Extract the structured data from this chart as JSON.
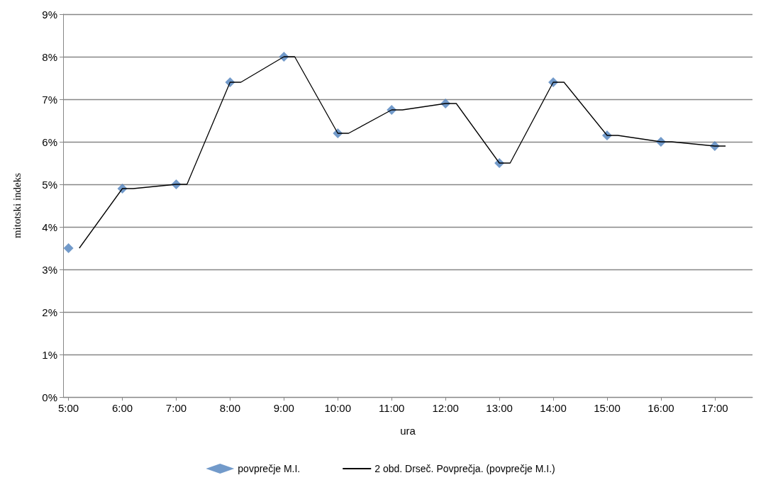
{
  "chart_data": {
    "type": "scatter",
    "xlabel": "ura",
    "ylabel": "mitotski indeks",
    "x": [
      5,
      6,
      7,
      8,
      9,
      10,
      11,
      12,
      13,
      14,
      15,
      16,
      17
    ],
    "series": [
      {
        "name": "povprečje M.I.",
        "color": "#4f81bd",
        "marker": "diamond",
        "values": [
          3.5,
          4.9,
          5.0,
          7.4,
          8.0,
          6.2,
          6.75,
          6.9,
          5.5,
          7.4,
          6.15,
          6.0,
          5.9
        ]
      },
      {
        "name": "2 obd. Drseč. Povprečja. (povprečje M.I.)",
        "type": "line",
        "color": "#000000",
        "marker": "none",
        "line_style": "solid",
        "x": [
          5.2,
          6,
          6.2,
          7,
          7.2,
          8,
          8.2,
          9,
          9.2,
          10,
          10.2,
          11,
          11.2,
          12,
          12.2,
          13,
          13.2,
          14,
          14.2,
          15,
          15.2,
          16,
          16.2,
          17,
          17.2
        ],
        "values": [
          3.5,
          4.9,
          4.9,
          5.0,
          5.0,
          7.4,
          7.4,
          8.0,
          8.0,
          6.2,
          6.2,
          6.75,
          6.75,
          6.9,
          6.9,
          5.5,
          5.5,
          7.4,
          7.4,
          6.15,
          6.15,
          6.0,
          6.0,
          5.9,
          5.9
        ]
      }
    ],
    "xlim": [
      4.9,
      17.7
    ],
    "xticks": [
      {
        "value": 5,
        "label": "5:00"
      },
      {
        "value": 6,
        "label": "6:00"
      },
      {
        "value": 7,
        "label": "7:00"
      },
      {
        "value": 8,
        "label": "8:00"
      },
      {
        "value": 9,
        "label": "9:00"
      },
      {
        "value": 10,
        "label": "10:00"
      },
      {
        "value": 11,
        "label": "11:00"
      },
      {
        "value": 12,
        "label": "12:00"
      },
      {
        "value": 13,
        "label": "13:00"
      },
      {
        "value": 14,
        "label": "14:00"
      },
      {
        "value": 15,
        "label": "15:00"
      },
      {
        "value": 16,
        "label": "16:00"
      },
      {
        "value": 17,
        "label": "17:00"
      }
    ],
    "ylim": [
      0,
      9
    ],
    "yticks": [
      {
        "value": 0,
        "label": "0%"
      },
      {
        "value": 1,
        "label": "1%"
      },
      {
        "value": 2,
        "label": "2%"
      },
      {
        "value": 3,
        "label": "3%"
      },
      {
        "value": 4,
        "label": "4%"
      },
      {
        "value": 5,
        "label": "5%"
      },
      {
        "value": 6,
        "label": "6%"
      },
      {
        "value": 7,
        "label": "7%"
      },
      {
        "value": 8,
        "label": "8%"
      },
      {
        "value": 9,
        "label": "9%"
      }
    ],
    "grid": "y",
    "legend": "bottom"
  }
}
